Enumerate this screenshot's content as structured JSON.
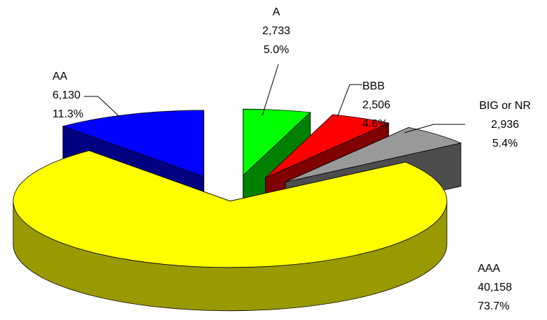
{
  "chart_data": {
    "type": "pie3d",
    "categories": [
      "A",
      "BBB",
      "BIG or NR",
      "AAA",
      "AA"
    ],
    "values": [
      2733,
      2506,
      2936,
      40158,
      6130
    ],
    "value_labels": [
      "2,733",
      "2,506",
      "2,936",
      "40,158",
      "6,130"
    ],
    "percents": [
      5.0,
      4.6,
      5.4,
      73.7,
      11.3
    ],
    "percent_labels": [
      "5.0%",
      "4.6%",
      "5.4%",
      "73.7%",
      "11.3%"
    ],
    "colors": [
      "#00ff00",
      "#ff0000",
      "#999999",
      "#ffff00",
      "#0000ff"
    ],
    "side_colors": [
      "#008000",
      "#800000",
      "#4d4d4d",
      "#999900",
      "#000080"
    ]
  }
}
